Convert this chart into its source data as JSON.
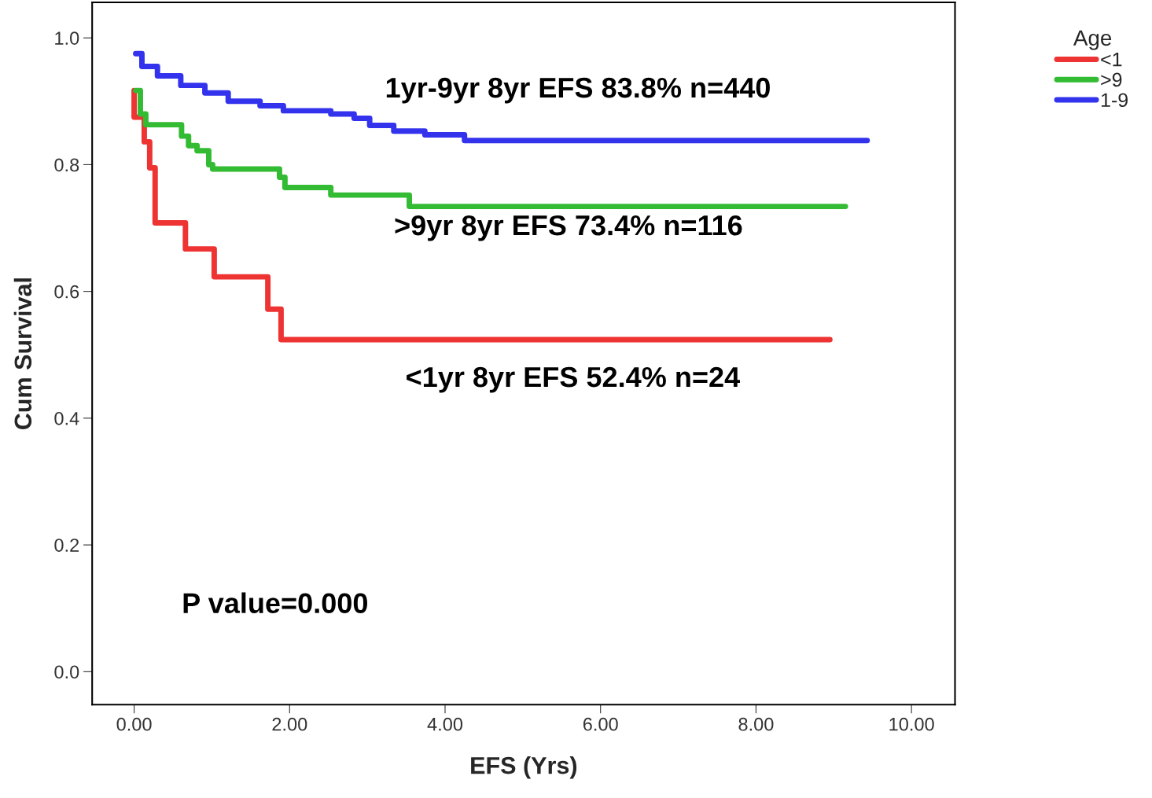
{
  "chart_data": {
    "type": "step",
    "xlabel": "EFS (Yrs)",
    "ylabel": "Cum Survival",
    "legend_title": "Age",
    "xlim": [
      -0.54,
      10.56
    ],
    "ylim": [
      -0.052,
      1.056
    ],
    "xticks": [
      {
        "value": 0,
        "label": "0.00"
      },
      {
        "value": 2,
        "label": "2.00"
      },
      {
        "value": 4,
        "label": "4.00"
      },
      {
        "value": 6,
        "label": "6.00"
      },
      {
        "value": 8,
        "label": "8.00"
      },
      {
        "value": 10,
        "label": "10.00"
      }
    ],
    "yticks": [
      {
        "value": 0,
        "label": "0.0"
      },
      {
        "value": 0.2,
        "label": "0.2"
      },
      {
        "value": 0.4,
        "label": "0.4"
      },
      {
        "value": 0.6,
        "label": "0.6"
      },
      {
        "value": 0.8,
        "label": "0.8"
      },
      {
        "value": 1.0,
        "label": "1.0"
      }
    ],
    "grid": false,
    "legend": "top right",
    "marker": "none",
    "line_style": "solid",
    "series": [
      {
        "name": "<1",
        "color": "#ee3333",
        "x": [
          0.0,
          0.0,
          0.13,
          0.2,
          0.27,
          0.66,
          1.03,
          1.72,
          1.89,
          8.95
        ],
        "values": [
          0.917,
          0.875,
          0.836,
          0.795,
          0.708,
          0.667,
          0.623,
          0.572,
          0.524,
          0.524
        ]
      },
      {
        "name": ">9",
        "color": "#33bb33",
        "x": [
          0.02,
          0.08,
          0.15,
          0.61,
          0.7,
          0.81,
          0.96,
          1.01,
          1.87,
          1.94,
          2.53,
          3.54,
          9.15
        ],
        "values": [
          0.917,
          0.88,
          0.863,
          0.845,
          0.83,
          0.822,
          0.8,
          0.793,
          0.78,
          0.764,
          0.752,
          0.734,
          0.734
        ]
      },
      {
        "name": "1-9",
        "color": "#3333ee",
        "x": [
          0.02,
          0.1,
          0.3,
          0.6,
          0.91,
          1.21,
          1.62,
          1.92,
          2.53,
          2.83,
          3.03,
          3.34,
          3.74,
          4.25,
          9.43
        ],
        "values": [
          0.975,
          0.955,
          0.94,
          0.925,
          0.913,
          0.9,
          0.893,
          0.885,
          0.88,
          0.873,
          0.862,
          0.853,
          0.847,
          0.838,
          0.838
        ]
      }
    ],
    "annotations": [
      "1yr-9yr 8yr EFS 83.8% n=440",
      ">9yr 8yr EFS 73.4% n=116",
      "<1yr 8yr EFS 52.4% n=24",
      "P value=0.000"
    ]
  }
}
